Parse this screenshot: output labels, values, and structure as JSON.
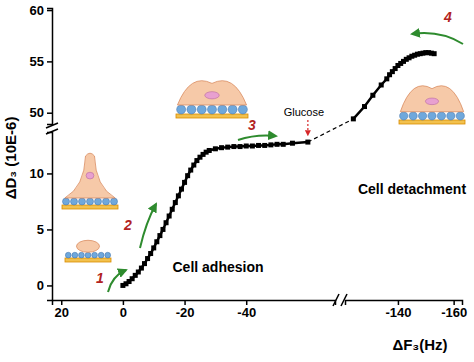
{
  "chart_data": [
    {
      "type": "line",
      "x_label": "ΔF₃(Hz)",
      "y_label": "ΔD₃ (10E-6)",
      "xlim": [
        23,
        -68.8
      ],
      "ylim": [
        -1.3,
        13.7
      ],
      "xticks": [
        20,
        0,
        -20,
        -40
      ],
      "yticks": [
        0,
        5,
        10
      ],
      "color": "#000000",
      "marker": "square",
      "annotations": [
        "1",
        "2",
        "3",
        "Glucose",
        "Cell adhesion"
      ],
      "x": [
        0,
        -1,
        -2,
        -3,
        -4,
        -5,
        -6,
        -7,
        -8,
        -9,
        -10,
        -11,
        -12,
        -13,
        -14,
        -15,
        -16,
        -17,
        -18,
        -19,
        -20,
        -21,
        -22,
        -23,
        -24,
        -25,
        -26,
        -27,
        -28,
        -30,
        -32,
        -34,
        -36,
        -38,
        -40,
        -42,
        -44,
        -46,
        -48,
        -50,
        -52,
        -55,
        -60
      ],
      "values": [
        0,
        0.15,
        0.35,
        0.6,
        0.9,
        1.2,
        1.55,
        1.95,
        2.4,
        2.85,
        3.35,
        3.9,
        4.45,
        5,
        5.6,
        6.2,
        6.8,
        7.4,
        8,
        8.6,
        9.2,
        9.8,
        10.3,
        10.75,
        11.15,
        11.45,
        11.7,
        11.9,
        12.05,
        12.2,
        12.3,
        12.35,
        12.4,
        12.4,
        12.45,
        12.45,
        12.5,
        12.5,
        12.55,
        12.6,
        12.6,
        12.7,
        12.8
      ]
    },
    {
      "type": "line",
      "xlim": [
        -121,
        -163
      ],
      "ylim": [
        48.9,
        60.2
      ],
      "xticks": [
        -140,
        -160
      ],
      "yticks": [
        50,
        55,
        60
      ],
      "color": "#000000",
      "marker": "square",
      "annotations": [
        "4",
        "Cell detachment"
      ],
      "x": [
        -124,
        -128,
        -131,
        -134,
        -136,
        -137,
        -138,
        -139,
        -140,
        -141,
        -142,
        -143,
        -144,
        -145,
        -146,
        -147,
        -148,
        -149,
        -150,
        -151,
        -152,
        -153
      ],
      "values": [
        49.4,
        50.6,
        51.7,
        52.7,
        53.3,
        53.7,
        54.0,
        54.3,
        54.6,
        54.8,
        55.0,
        55.2,
        55.35,
        55.5,
        55.6,
        55.7,
        55.75,
        55.8,
        55.85,
        55.85,
        55.8,
        55.75
      ]
    }
  ]
}
